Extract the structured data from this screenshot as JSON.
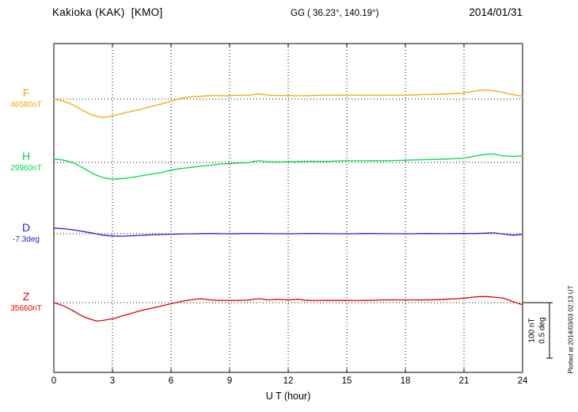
{
  "header": {
    "station": "Kakioka (KAK)  [KMO]",
    "coordinates": "GG ( 36.23°, 140.19°)",
    "date": "2014/01/31"
  },
  "footer": {
    "plotted_at": "Plotted at 2014/03/03 02:13 UT"
  },
  "chart_data": {
    "type": "line",
    "title": "Kakioka (KAK) [KMO] magnetogram 2014/01/31",
    "xlabel": "U T (hour)",
    "xlim": [
      0,
      24
    ],
    "x_ticks": [
      0,
      3,
      6,
      9,
      12,
      15,
      18,
      21,
      24
    ],
    "grid": "dotted vertical lines at 3-hour ticks; dotted horizontal baseline per channel",
    "scale_bar": {
      "labels": [
        "100 nT",
        "0.5 deg"
      ]
    },
    "values_are": "offset from channel base value, in channel unit",
    "series": [
      {
        "name": "F",
        "base_label": "46580nT",
        "base_value": 46580,
        "unit": "nT",
        "color": "#f0a800",
        "points": [
          [
            0,
            0
          ],
          [
            0.5,
            -4
          ],
          [
            1,
            -11
          ],
          [
            1.5,
            -21
          ],
          [
            2,
            -29
          ],
          [
            2.5,
            -33
          ],
          [
            3,
            -30
          ],
          [
            3.5,
            -26
          ],
          [
            4,
            -22
          ],
          [
            4.5,
            -18
          ],
          [
            5,
            -13
          ],
          [
            5.5,
            -9
          ],
          [
            6,
            -4
          ],
          [
            6.5,
            1
          ],
          [
            7,
            4
          ],
          [
            7.5,
            5
          ],
          [
            8,
            6
          ],
          [
            9,
            6
          ],
          [
            9.5,
            7
          ],
          [
            10,
            7
          ],
          [
            10.5,
            9
          ],
          [
            11,
            7
          ],
          [
            12,
            6
          ],
          [
            13,
            6
          ],
          [
            14,
            7
          ],
          [
            15,
            7
          ],
          [
            16,
            7
          ],
          [
            17,
            7
          ],
          [
            18,
            7
          ],
          [
            19,
            8
          ],
          [
            20,
            9
          ],
          [
            21,
            11
          ],
          [
            21.5,
            14
          ],
          [
            22,
            16
          ],
          [
            22.5,
            15
          ],
          [
            23,
            12
          ],
          [
            23.5,
            8
          ],
          [
            24,
            5
          ]
        ]
      },
      {
        "name": "H",
        "base_label": "29960nT",
        "base_value": 29960,
        "unit": "nT",
        "color": "#00d84e",
        "points": [
          [
            0,
            6
          ],
          [
            0.5,
            4
          ],
          [
            1,
            -1
          ],
          [
            1.5,
            -10
          ],
          [
            2,
            -20
          ],
          [
            2.5,
            -27
          ],
          [
            3,
            -30
          ],
          [
            3.5,
            -29
          ],
          [
            4,
            -27
          ],
          [
            4.5,
            -24
          ],
          [
            5,
            -21
          ],
          [
            5.5,
            -18
          ],
          [
            6,
            -14
          ],
          [
            6.5,
            -11
          ],
          [
            7,
            -9
          ],
          [
            7.5,
            -7
          ],
          [
            8,
            -5
          ],
          [
            8.5,
            -3
          ],
          [
            9,
            -2
          ],
          [
            9.5,
            -1
          ],
          [
            10,
            0
          ],
          [
            10.5,
            3
          ],
          [
            11,
            1
          ],
          [
            12,
            1
          ],
          [
            13,
            2
          ],
          [
            14,
            2
          ],
          [
            15,
            3
          ],
          [
            16,
            3
          ],
          [
            17,
            3
          ],
          [
            18,
            4
          ],
          [
            19,
            5
          ],
          [
            20,
            6
          ],
          [
            21,
            8
          ],
          [
            21.5,
            11
          ],
          [
            22,
            14
          ],
          [
            22.5,
            15
          ],
          [
            23,
            12
          ],
          [
            23.5,
            11
          ],
          [
            24,
            12
          ]
        ]
      },
      {
        "name": "D",
        "base_label": "-7.3deg",
        "base_value": -7.3,
        "unit": "deg",
        "color": "#2323cc",
        "points": [
          [
            0,
            0.05
          ],
          [
            0.5,
            0.045
          ],
          [
            1,
            0.035
          ],
          [
            1.5,
            0.02
          ],
          [
            2,
            0.005
          ],
          [
            2.5,
            -0.012
          ],
          [
            3,
            -0.02
          ],
          [
            3.5,
            -0.022
          ],
          [
            4,
            -0.018
          ],
          [
            4.5,
            -0.014
          ],
          [
            5,
            -0.01
          ],
          [
            5.5,
            -0.007
          ],
          [
            6,
            -0.004
          ],
          [
            7,
            -0.001
          ],
          [
            8,
            0.002
          ],
          [
            9,
            0
          ],
          [
            10,
            0.003
          ],
          [
            11,
            0.001
          ],
          [
            12,
            0
          ],
          [
            13,
            0.002
          ],
          [
            14,
            0.001
          ],
          [
            15,
            0
          ],
          [
            16,
            0.002
          ],
          [
            17,
            0.001
          ],
          [
            18,
            0
          ],
          [
            19,
            0.002
          ],
          [
            20,
            0.001
          ],
          [
            21,
            0.002
          ],
          [
            22,
            0.004
          ],
          [
            22.5,
            0.008
          ],
          [
            23,
            -0.003
          ],
          [
            23.5,
            -0.012
          ],
          [
            24,
            -0.006
          ]
        ]
      },
      {
        "name": "Z",
        "base_label": "35660nT",
        "base_value": 35660,
        "unit": "nT",
        "color": "#e00000",
        "points": [
          [
            0,
            0
          ],
          [
            0.5,
            -6
          ],
          [
            1,
            -15
          ],
          [
            1.5,
            -25
          ],
          [
            2,
            -31
          ],
          [
            2.2,
            -33
          ],
          [
            2.5,
            -32
          ],
          [
            3,
            -29
          ],
          [
            3.5,
            -24
          ],
          [
            4,
            -19
          ],
          [
            4.5,
            -14
          ],
          [
            5,
            -10
          ],
          [
            5.5,
            -6
          ],
          [
            6,
            -2
          ],
          [
            6.5,
            2
          ],
          [
            7,
            5
          ],
          [
            7.5,
            7
          ],
          [
            8,
            5
          ],
          [
            8.5,
            4
          ],
          [
            9,
            4
          ],
          [
            9.5,
            4
          ],
          [
            10,
            5
          ],
          [
            10.5,
            7
          ],
          [
            11,
            5
          ],
          [
            11.5,
            6
          ],
          [
            12,
            5
          ],
          [
            12.5,
            6
          ],
          [
            13,
            4
          ],
          [
            14,
            4
          ],
          [
            15,
            4
          ],
          [
            16,
            4
          ],
          [
            17,
            5
          ],
          [
            18,
            5
          ],
          [
            19,
            5
          ],
          [
            20,
            6
          ],
          [
            21,
            8
          ],
          [
            21.5,
            10
          ],
          [
            22,
            11
          ],
          [
            22.5,
            10
          ],
          [
            23,
            8
          ],
          [
            23.5,
            2
          ],
          [
            24,
            -4
          ]
        ]
      }
    ]
  }
}
